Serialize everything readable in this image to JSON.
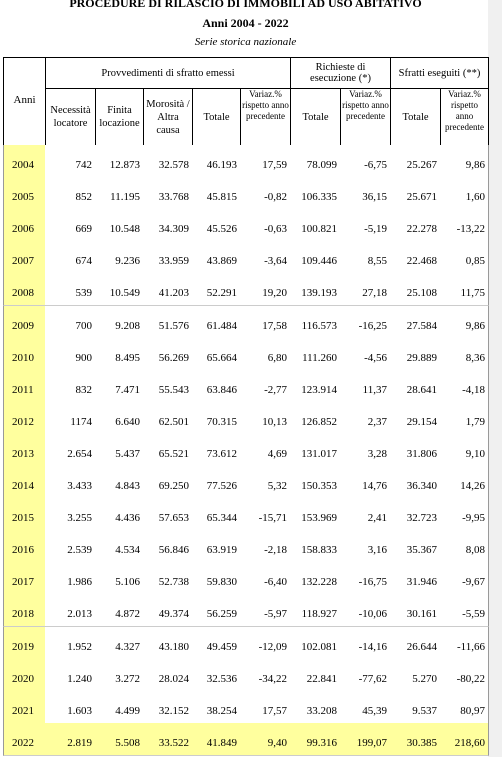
{
  "header": {
    "title": "PROCEDURE DI RILASCIO DI IMMOBILI AD USO ABITATIVO",
    "subtitle": "Anni 2004 - 2022",
    "note": "Serie storica nazionale"
  },
  "table": {
    "year_header": "Anni",
    "groups": [
      "Provvedimenti di sfratto emessi",
      "Richieste di esecuzione (*)",
      "Sfratti eseguiti  (**)"
    ],
    "columns": [
      "Necessità locatore",
      "Finita locazione",
      "Morosità / Altra causa",
      "Totale",
      "Variaz.% rispetto anno precedente",
      "Totale",
      "Variaz.% rispetto anno precedente",
      "Totale",
      "Variaz.% rispetto anno precedente"
    ],
    "rows": [
      [
        "2004",
        "742",
        "12.873",
        "32.578",
        "46.193",
        "17,59",
        "78.099",
        "-6,75",
        "25.267",
        "9,86"
      ],
      [
        "2005",
        "852",
        "11.195",
        "33.768",
        "45.815",
        "-0,82",
        "106.335",
        "36,15",
        "25.671",
        "1,60"
      ],
      [
        "2006",
        "669",
        "10.548",
        "34.309",
        "45.526",
        "-0,63",
        "100.821",
        "-5,19",
        "22.278",
        "-13,22"
      ],
      [
        "2007",
        "674",
        "9.236",
        "33.959",
        "43.869",
        "-3,64",
        "109.446",
        "8,55",
        "22.468",
        "0,85"
      ],
      [
        "2008",
        "539",
        "10.549",
        "41.203",
        "52.291",
        "19,20",
        "139.193",
        "27,18",
        "25.108",
        "11,75"
      ],
      [
        "2009",
        "700",
        "9.208",
        "51.576",
        "61.484",
        "17,58",
        "116.573",
        "-16,25",
        "27.584",
        "9,86"
      ],
      [
        "2010",
        "900",
        "8.495",
        "56.269",
        "65.664",
        "6,80",
        "111.260",
        "-4,56",
        "29.889",
        "8,36"
      ],
      [
        "2011",
        "832",
        "7.471",
        "55.543",
        "63.846",
        "-2,77",
        "123.914",
        "11,37",
        "28.641",
        "-4,18"
      ],
      [
        "2012",
        "1174",
        "6.640",
        "62.501",
        "70.315",
        "10,13",
        "126.852",
        "2,37",
        "29.154",
        "1,79"
      ],
      [
        "2013",
        "2.654",
        "5.437",
        "65.521",
        "73.612",
        "4,69",
        "131.017",
        "3,28",
        "31.806",
        "9,10"
      ],
      [
        "2014",
        "3.433",
        "4.843",
        "69.250",
        "77.526",
        "5,32",
        "150.353",
        "14,76",
        "36.340",
        "14,26"
      ],
      [
        "2015",
        "3.255",
        "4.436",
        "57.653",
        "65.344",
        "-15,71",
        "153.969",
        "2,41",
        "32.723",
        "-9,95"
      ],
      [
        "2016",
        "2.539",
        "4.534",
        "56.846",
        "63.919",
        "-2,18",
        "158.833",
        "3,16",
        "35.367",
        "8,08"
      ],
      [
        "2017",
        "1.986",
        "5.106",
        "52.738",
        "59.830",
        "-6,40",
        "132.228",
        "-16,75",
        "31.946",
        "-9,67"
      ],
      [
        "2018",
        "2.013",
        "4.872",
        "49.374",
        "56.259",
        "-5,97",
        "118.927",
        "-10,06",
        "30.161",
        "-5,59"
      ],
      [
        "2019",
        "1.952",
        "4.327",
        "43.180",
        "49.459",
        "-12,09",
        "102.081",
        "-14,16",
        "26.644",
        "-11,66"
      ],
      [
        "2020",
        "1.240",
        "3.272",
        "28.024",
        "32.536",
        "-34,22",
        "22.841",
        "-77,62",
        "5.270",
        "-80,22"
      ],
      [
        "2021",
        "1.603",
        "4.499",
        "32.152",
        "38.254",
        "17,57",
        "33.208",
        "45,39",
        "9.537",
        "80,97"
      ],
      [
        "2022",
        "2.819",
        "5.508",
        "33.522",
        "41.849",
        "9,40",
        "99.316",
        "199,07",
        "30.385",
        "218,60"
      ]
    ]
  }
}
